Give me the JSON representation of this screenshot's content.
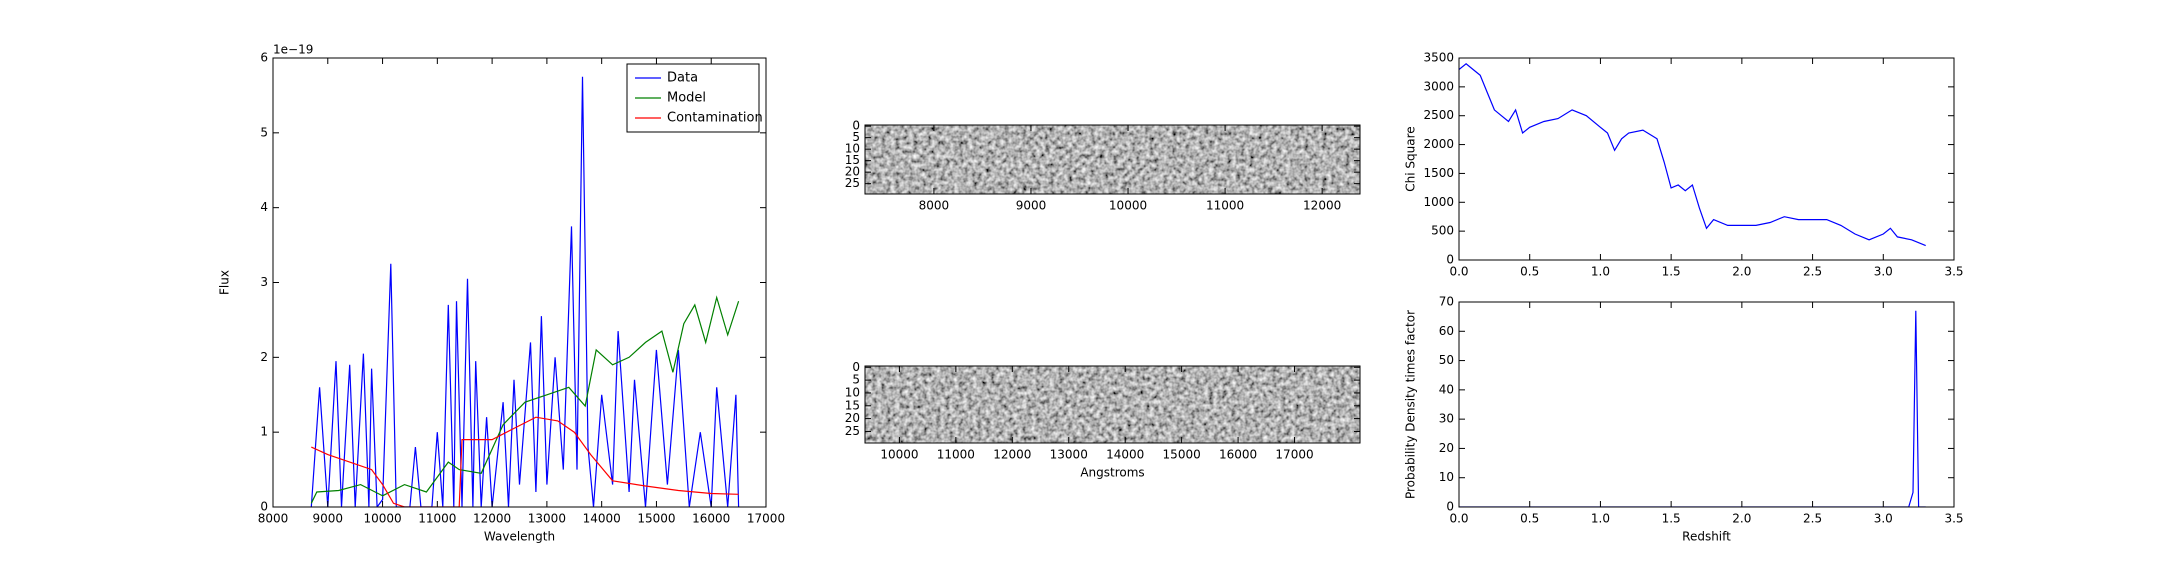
{
  "chart_data": [
    {
      "type": "line",
      "ylabel": "Flux",
      "xlabel": "Wavelength",
      "offset_label": "1e−19",
      "xlim": [
        8000,
        17000
      ],
      "ylim": [
        0,
        6
      ],
      "xticks": [
        8000,
        9000,
        10000,
        11000,
        12000,
        13000,
        14000,
        15000,
        16000,
        17000
      ],
      "yticks": [
        0,
        1,
        2,
        3,
        4,
        5,
        6
      ],
      "legend": "upper right",
      "series": [
        {
          "name": "Data",
          "color": "#0000ff",
          "x": [
            8700,
            8850,
            9000,
            9150,
            9250,
            9400,
            9500,
            9650,
            9750,
            9800,
            9900,
            10000,
            10150,
            10250,
            10500,
            10600,
            10700,
            10900,
            11000,
            11100,
            11200,
            11300,
            11350,
            11450,
            11550,
            11650,
            11700,
            11800,
            11900,
            12000,
            12200,
            12300,
            12400,
            12500,
            12700,
            12800,
            12900,
            13000,
            13150,
            13300,
            13450,
            13550,
            13650,
            13750,
            13850,
            14000,
            14200,
            14300,
            14500,
            14600,
            14800,
            15000,
            15200,
            15400,
            15600,
            15800,
            16000,
            16100,
            16300,
            16450,
            16500
          ],
          "values": [
            0,
            1.6,
            0,
            1.95,
            0,
            1.9,
            0,
            2.05,
            0,
            1.85,
            0,
            0.1,
            3.25,
            0,
            0,
            0.8,
            0,
            0,
            1.0,
            0,
            2.7,
            0,
            2.75,
            0,
            3.05,
            0,
            1.95,
            0,
            1.2,
            0,
            1.4,
            0,
            1.7,
            0.3,
            2.2,
            0.2,
            2.55,
            0.3,
            2.0,
            0.5,
            3.75,
            0.5,
            5.75,
            0.8,
            0,
            1.5,
            0.3,
            2.35,
            0.2,
            1.7,
            0,
            2.1,
            0.3,
            2.1,
            0,
            1.0,
            0,
            1.6,
            0,
            1.5,
            0
          ]
        },
        {
          "name": "Model",
          "color": "#008000",
          "x": [
            8700,
            8800,
            9200,
            9600,
            10000,
            10400,
            10800,
            11200,
            11400,
            11800,
            12200,
            12600,
            13000,
            13400,
            13700,
            13900,
            14200,
            14500,
            14800,
            15100,
            15300,
            15500,
            15700,
            15900,
            16100,
            16300,
            16500
          ],
          "values": [
            0.05,
            0.2,
            0.22,
            0.3,
            0.15,
            0.3,
            0.2,
            0.6,
            0.5,
            0.45,
            1.1,
            1.4,
            1.5,
            1.6,
            1.35,
            2.1,
            1.9,
            2.0,
            2.2,
            2.35,
            1.8,
            2.45,
            2.7,
            2.2,
            2.8,
            2.3,
            2.75
          ]
        },
        {
          "name": "Contamination",
          "color": "#ff0000",
          "x": [
            8700,
            9000,
            9400,
            9800,
            10000,
            10200,
            10400,
            11000,
            11400,
            11450,
            11700,
            12000,
            12400,
            12800,
            13200,
            13500,
            13800,
            14200,
            14800,
            15400,
            16000,
            16500
          ],
          "values": [
            0.8,
            0.7,
            0.6,
            0.5,
            0.3,
            0.05,
            0,
            0,
            0,
            0.9,
            0.9,
            0.9,
            1.05,
            1.2,
            1.15,
            1.0,
            0.7,
            0.35,
            0.28,
            0.22,
            0.18,
            0.17
          ]
        }
      ]
    },
    {
      "type": "image",
      "xlim": [
        7290,
        12390
      ],
      "ylim": [
        29.5,
        -0.5
      ],
      "xticks": [
        8000,
        9000,
        10000,
        11000,
        12000
      ],
      "yticks": [
        0,
        5,
        10,
        15,
        20,
        25
      ]
    },
    {
      "type": "image",
      "xlabel": "Angstroms",
      "xlim": [
        9390,
        18160
      ],
      "ylim": [
        29.5,
        -0.5
      ],
      "xticks": [
        10000,
        11000,
        12000,
        13000,
        14000,
        15000,
        16000,
        17000
      ],
      "yticks": [
        0,
        5,
        10,
        15,
        20,
        25
      ]
    },
    {
      "type": "line",
      "ylabel": "Chi Square",
      "xlim": [
        0,
        3.5
      ],
      "ylim": [
        0,
        3500
      ],
      "xticks": [
        {
          "value": 0,
          "label": "0.0"
        },
        0.5,
        {
          "value": 1,
          "label": "1.0"
        },
        1.5,
        {
          "value": 2,
          "label": "2.0"
        },
        2.5,
        {
          "value": 3,
          "label": "3.0"
        },
        3.5
      ],
      "yticks": [
        0,
        500,
        1000,
        1500,
        2000,
        2500,
        3000,
        3500
      ],
      "series": [
        {
          "color": "#0000ff",
          "x": [
            0,
            0.05,
            0.1,
            0.15,
            0.2,
            0.25,
            0.3,
            0.35,
            0.4,
            0.45,
            0.5,
            0.6,
            0.7,
            0.8,
            0.9,
            1.0,
            1.05,
            1.1,
            1.15,
            1.2,
            1.3,
            1.4,
            1.45,
            1.5,
            1.55,
            1.6,
            1.65,
            1.7,
            1.75,
            1.8,
            1.9,
            2.0,
            2.1,
            2.2,
            2.3,
            2.4,
            2.5,
            2.6,
            2.7,
            2.8,
            2.9,
            3.0,
            3.05,
            3.1,
            3.2,
            3.3
          ],
          "values": [
            3300,
            3400,
            3300,
            3200,
            2900,
            2600,
            2500,
            2400,
            2600,
            2200,
            2300,
            2400,
            2450,
            2600,
            2500,
            2300,
            2200,
            1900,
            2100,
            2200,
            2250,
            2100,
            1700,
            1250,
            1300,
            1200,
            1300,
            900,
            550,
            700,
            600,
            600,
            600,
            650,
            750,
            700,
            700,
            700,
            600,
            450,
            350,
            450,
            550,
            400,
            350,
            250
          ]
        }
      ]
    },
    {
      "type": "line",
      "ylabel": "Probability Density times factor",
      "xlabel": "Redshift",
      "xlim": [
        0,
        3.5
      ],
      "ylim": [
        0,
        70
      ],
      "xticks": [
        {
          "value": 0,
          "label": "0.0"
        },
        0.5,
        {
          "value": 1,
          "label": "1.0"
        },
        1.5,
        {
          "value": 2,
          "label": "2.0"
        },
        2.5,
        {
          "value": 3,
          "label": "3.0"
        },
        3.5
      ],
      "yticks": [
        0,
        10,
        20,
        30,
        40,
        50,
        60,
        70
      ],
      "series": [
        {
          "color": "#0000ff",
          "x": [
            0,
            3.18,
            3.21,
            3.23,
            3.25,
            3.3
          ],
          "values": [
            0,
            0,
            5,
            67,
            0,
            0
          ]
        }
      ]
    }
  ]
}
